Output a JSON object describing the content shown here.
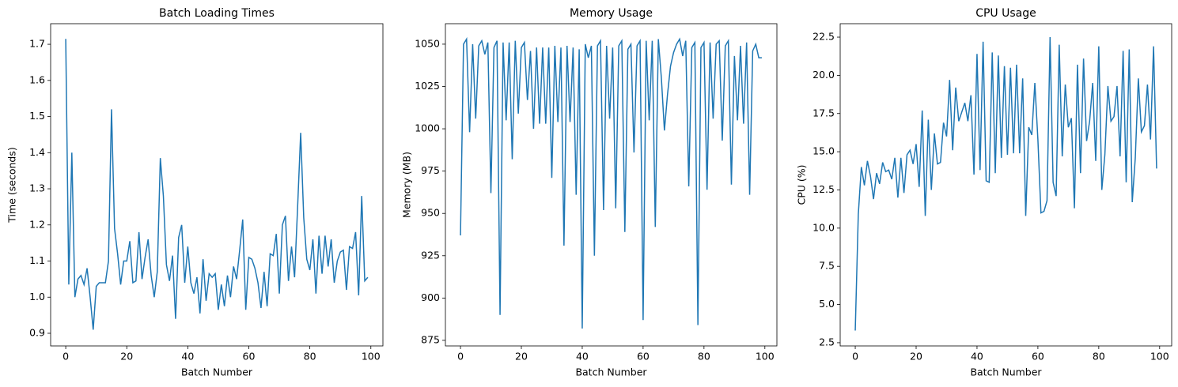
{
  "chart_data": [
    {
      "type": "line",
      "title": "Batch Loading Times",
      "x_label": "Batch Number",
      "y_label": "Time (seconds)",
      "color": "#1f77b4",
      "x": [
        0,
        1,
        2,
        3,
        4,
        5,
        6,
        7,
        8,
        9,
        10,
        11,
        12,
        13,
        14,
        15,
        16,
        17,
        18,
        19,
        20,
        21,
        22,
        23,
        24,
        25,
        26,
        27,
        28,
        29,
        30,
        31,
        32,
        33,
        34,
        35,
        36,
        37,
        38,
        39,
        40,
        41,
        42,
        43,
        44,
        45,
        46,
        47,
        48,
        49,
        50,
        51,
        52,
        53,
        54,
        55,
        56,
        57,
        58,
        59,
        60,
        61,
        62,
        63,
        64,
        65,
        66,
        67,
        68,
        69,
        70,
        71,
        72,
        73,
        74,
        75,
        76,
        77,
        78,
        79,
        80,
        81,
        82,
        83,
        84,
        85,
        86,
        87,
        88,
        89,
        90,
        91,
        92,
        93,
        94,
        95,
        96,
        97,
        98,
        99
      ],
      "values": [
        1.715,
        1.035,
        1.4,
        1.0,
        1.05,
        1.06,
        1.035,
        1.08,
        1.0,
        0.91,
        1.03,
        1.04,
        1.04,
        1.04,
        1.1,
        1.52,
        1.19,
        1.12,
        1.035,
        1.1,
        1.1,
        1.155,
        1.04,
        1.045,
        1.18,
        1.05,
        1.11,
        1.16,
        1.06,
        1.0,
        1.07,
        1.385,
        1.28,
        1.09,
        1.045,
        1.115,
        0.94,
        1.165,
        1.2,
        1.04,
        1.14,
        1.04,
        1.01,
        1.055,
        0.955,
        1.105,
        0.99,
        1.065,
        1.055,
        1.065,
        0.965,
        1.035,
        0.975,
        1.06,
        1.0,
        1.085,
        1.05,
        1.13,
        1.215,
        0.965,
        1.11,
        1.105,
        1.08,
        1.04,
        0.97,
        1.07,
        0.975,
        1.12,
        1.115,
        1.175,
        1.01,
        1.2,
        1.225,
        1.045,
        1.14,
        1.055,
        1.25,
        1.455,
        1.22,
        1.105,
        1.075,
        1.16,
        1.01,
        1.17,
        1.065,
        1.17,
        1.085,
        1.16,
        1.04,
        1.1,
        1.125,
        1.13,
        1.02,
        1.14,
        1.135,
        1.18,
        1.005,
        1.28,
        1.045,
        1.055
      ],
      "xlim": [
        -4.95,
        103.95
      ],
      "xticks": [
        0,
        20,
        40,
        60,
        80,
        100
      ],
      "ylim": [
        0.865,
        1.757
      ],
      "yticks": [
        0.9,
        {
          "value": 1,
          "label": "1.0"
        },
        1.1,
        1.2,
        1.3,
        1.4,
        1.5,
        1.6,
        1.7
      ]
    },
    {
      "type": "line",
      "title": "Memory Usage",
      "x_label": "Batch Number",
      "y_label": "Memory (MB)",
      "color": "#1f77b4",
      "x": [
        0,
        1,
        2,
        3,
        4,
        5,
        6,
        7,
        8,
        9,
        10,
        11,
        12,
        13,
        14,
        15,
        16,
        17,
        18,
        19,
        20,
        21,
        22,
        23,
        24,
        25,
        26,
        27,
        28,
        29,
        30,
        31,
        32,
        33,
        34,
        35,
        36,
        37,
        38,
        39,
        40,
        41,
        42,
        43,
        44,
        45,
        46,
        47,
        48,
        49,
        50,
        51,
        52,
        53,
        54,
        55,
        56,
        57,
        58,
        59,
        60,
        61,
        62,
        63,
        64,
        65,
        66,
        67,
        68,
        69,
        70,
        71,
        72,
        73,
        74,
        75,
        76,
        77,
        78,
        79,
        80,
        81,
        82,
        83,
        84,
        85,
        86,
        87,
        88,
        89,
        90,
        91,
        92,
        93,
        94,
        95,
        96,
        97,
        98,
        99
      ],
      "values": [
        937,
        1050,
        1053,
        998,
        1050,
        1006,
        1049,
        1052,
        1044,
        1051,
        962,
        1048,
        1052,
        890,
        1051,
        1005,
        1051,
        982,
        1052,
        1009,
        1048,
        1051,
        1017,
        1046,
        1000,
        1048,
        1003,
        1048,
        1003,
        1048,
        971,
        1049,
        1004,
        1048,
        931,
        1049,
        1004,
        1048,
        961,
        1047,
        882,
        1050,
        1042,
        1049,
        925,
        1049,
        1052,
        952,
        1049,
        1006,
        1048,
        953,
        1049,
        1052,
        939,
        1047,
        1050,
        986,
        1049,
        1052,
        887,
        1052,
        1005,
        1052,
        942,
        1053,
        1030,
        999,
        1020,
        1037,
        1045,
        1050,
        1053,
        1043,
        1052,
        966,
        1048,
        1051,
        884,
        1048,
        1051,
        964,
        1051,
        1006,
        1050,
        1052,
        993,
        1049,
        1052,
        967,
        1043,
        1005,
        1049,
        1003,
        1051,
        961,
        1046,
        1050,
        1042,
        1042
      ],
      "xlim": [
        -4.95,
        103.95
      ],
      "xticks": [
        0,
        20,
        40,
        60,
        80,
        100
      ],
      "ylim": [
        871.7,
        1062.1
      ],
      "yticks": [
        875,
        900,
        925,
        950,
        975,
        1000,
        1025,
        1050
      ]
    },
    {
      "type": "line",
      "title": "CPU Usage",
      "x_label": "Batch Number",
      "y_label": "CPU (%)",
      "color": "#1f77b4",
      "x": [
        0,
        1,
        2,
        3,
        4,
        5,
        6,
        7,
        8,
        9,
        10,
        11,
        12,
        13,
        14,
        15,
        16,
        17,
        18,
        19,
        20,
        21,
        22,
        23,
        24,
        25,
        26,
        27,
        28,
        29,
        30,
        31,
        32,
        33,
        34,
        35,
        36,
        37,
        38,
        39,
        40,
        41,
        42,
        43,
        44,
        45,
        46,
        47,
        48,
        49,
        50,
        51,
        52,
        53,
        54,
        55,
        56,
        57,
        58,
        59,
        60,
        61,
        62,
        63,
        64,
        65,
        66,
        67,
        68,
        69,
        70,
        71,
        72,
        73,
        74,
        75,
        76,
        77,
        78,
        79,
        80,
        81,
        82,
        83,
        84,
        85,
        86,
        87,
        88,
        89,
        90,
        91,
        92,
        93,
        94,
        95,
        96,
        97,
        98,
        99
      ],
      "values": [
        3.3,
        10.9,
        14.0,
        12.8,
        14.4,
        13.4,
        11.9,
        13.6,
        12.9,
        14.3,
        13.7,
        13.8,
        13.2,
        14.6,
        12.0,
        14.6,
        12.3,
        14.8,
        15.1,
        14.2,
        15.5,
        12.7,
        17.7,
        10.8,
        17.1,
        12.5,
        16.2,
        14.2,
        14.3,
        16.9,
        16.0,
        19.7,
        15.1,
        19.2,
        17.0,
        17.6,
        18.2,
        17.0,
        18.7,
        13.5,
        21.4,
        13.8,
        22.2,
        13.1,
        13.0,
        21.5,
        13.6,
        21.3,
        14.6,
        20.6,
        14.8,
        20.5,
        14.9,
        20.7,
        14.9,
        19.8,
        10.8,
        16.6,
        16.1,
        19.5,
        15.8,
        11.0,
        11.1,
        11.8,
        22.5,
        13.0,
        12.1,
        22.0,
        14.7,
        19.4,
        16.6,
        17.2,
        11.3,
        20.7,
        13.6,
        21.1,
        15.7,
        17.0,
        19.5,
        14.4,
        21.9,
        12.5,
        14.8,
        19.3,
        17.0,
        17.3,
        19.3,
        14.7,
        21.6,
        13.0,
        21.7,
        11.7,
        14.6,
        19.8,
        16.3,
        16.7,
        19.4,
        15.8,
        21.9,
        13.9
      ],
      "xlim": [
        -4.95,
        103.95
      ],
      "xticks": [
        0,
        20,
        40,
        60,
        80,
        100
      ],
      "ylim": [
        2.29,
        23.38
      ],
      "yticks": [
        2.5,
        {
          "value": 5,
          "label": "5.0"
        },
        7.5,
        {
          "value": 10,
          "label": "10.0"
        },
        12.5,
        {
          "value": 15,
          "label": "15.0"
        },
        17.5,
        {
          "value": 20,
          "label": "20.0"
        },
        22.5
      ]
    }
  ]
}
